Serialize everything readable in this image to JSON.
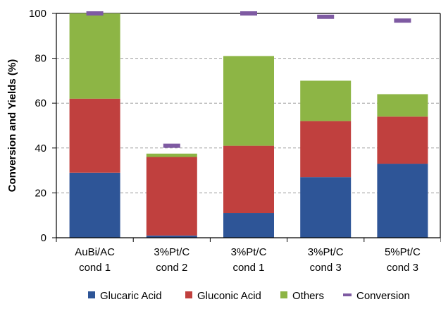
{
  "chart_data": {
    "type": "bar",
    "stacked": true,
    "title": "",
    "xlabel": "",
    "ylabel": "Conversion and Yields (%)",
    "ylim": [
      0,
      100
    ],
    "yticks": [
      0,
      20,
      40,
      60,
      80,
      100
    ],
    "grid": "horizontal-dashed",
    "legend_position": "bottom",
    "categories": [
      [
        "AuBi/AC",
        "cond 1"
      ],
      [
        "3%Pt/C",
        "cond 2"
      ],
      [
        "3%Pt/C",
        "cond 1"
      ],
      [
        "3%Pt/C",
        "cond 3"
      ],
      [
        "5%Pt/C",
        "cond 3"
      ]
    ],
    "series": [
      {
        "name": "Glucaric Acid",
        "color": "#2e5597",
        "values": [
          29,
          1,
          11,
          27,
          33
        ]
      },
      {
        "name": "Gluconic Acid",
        "color": "#c0403e",
        "values": [
          33,
          35,
          30,
          25,
          21
        ]
      },
      {
        "name": "Others",
        "color": "#8db545",
        "values": [
          38,
          1.5,
          40,
          18,
          10
        ]
      }
    ],
    "markers": {
      "name": "Conversion",
      "color": "#7e5aa2",
      "shape": "dash",
      "values": [
        100,
        41,
        100,
        98.5,
        96.8
      ]
    }
  }
}
